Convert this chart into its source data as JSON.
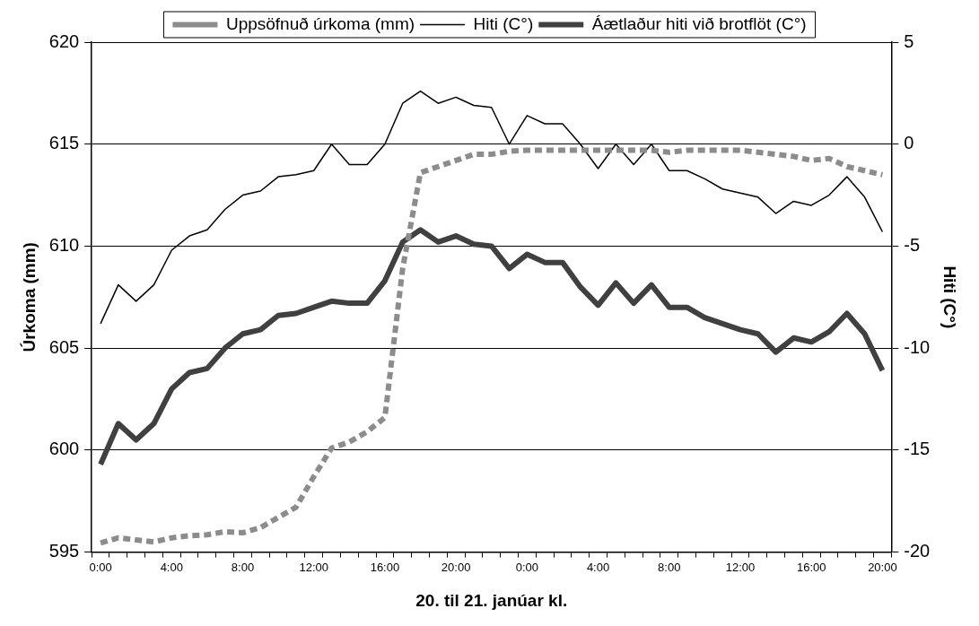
{
  "chart_data": {
    "type": "line",
    "xlabel": "20. til 21. janúar kl.",
    "ylabel": "Úrkoma (mm)",
    "y2label": "Hiti (C°)",
    "categories": [
      "0:00",
      null,
      null,
      null,
      "4:00",
      null,
      null,
      null,
      "8:00",
      null,
      null,
      null,
      "12:00",
      null,
      null,
      null,
      "16:00",
      null,
      null,
      null,
      "20:00",
      null,
      null,
      null,
      "0:00",
      null,
      null,
      null,
      "4:00",
      null,
      null,
      null,
      "8:00",
      null,
      null,
      null,
      "12:00",
      null,
      null,
      null,
      "16:00",
      null,
      null,
      null,
      "20:00"
    ],
    "series": [
      {
        "name": "Uppsöfnuð úrkoma (mm)",
        "color": "#8c8c8c",
        "line_style": "dashed",
        "values": [
          595.45,
          595.7,
          595.6,
          595.5,
          595.7,
          595.8,
          595.85,
          596.0,
          595.95,
          596.2,
          596.7,
          597.2,
          598.7,
          600.1,
          600.4,
          600.9,
          601.6,
          608.9,
          613.6,
          613.9,
          614.2,
          614.5,
          614.5,
          614.65,
          614.7,
          614.7,
          614.7,
          614.7,
          614.7,
          614.7,
          614.7,
          614.7,
          614.6,
          614.7,
          614.7,
          614.7,
          614.7,
          614.6,
          614.5,
          614.4,
          614.2,
          614.3,
          613.9,
          613.7,
          613.5
        ]
      },
      {
        "name": "Hiti (C°)",
        "color": "#000000",
        "axis": "y2",
        "line_style": "solid",
        "values": [
          -8.8,
          -6.9,
          -7.7,
          -6.9,
          -5.2,
          -4.5,
          -4.2,
          -3.2,
          -2.5,
          -2.3,
          -1.6,
          -1.5,
          -1.3,
          0,
          -1.0,
          -1.0,
          0,
          2.0,
          2.6,
          2.0,
          2.3,
          1.9,
          1.8,
          0.0,
          1.4,
          1.0,
          1.0,
          0.0,
          -1.2,
          0,
          -1.0,
          0,
          -1.3,
          -1.3,
          -1.7,
          -2.2,
          -2.4,
          -2.6,
          -3.4,
          -2.8,
          -3.0,
          -2.5,
          -1.6,
          -2.6,
          -4.3
        ]
      },
      {
        "name": "Áætlaður hiti við brotflöt (C°)",
        "color": "#404040",
        "axis": "y2",
        "line_style": "solid",
        "values": [
          -15.7,
          -13.7,
          -14.5,
          -13.7,
          -12.0,
          -11.2,
          -11.0,
          -10.0,
          -9.3,
          -9.1,
          -8.4,
          -8.3,
          -8.0,
          -7.7,
          -7.8,
          -7.8,
          -6.7,
          -4.8,
          -4.2,
          -4.8,
          -4.5,
          -4.9,
          -5.0,
          -6.1,
          -5.4,
          -5.8,
          -5.8,
          -7.0,
          -7.9,
          -6.8,
          -7.8,
          -6.9,
          -8.0,
          -8.0,
          -8.5,
          -8.8,
          -9.1,
          -9.3,
          -10.2,
          -9.5,
          -9.7,
          -9.2,
          -8.3,
          -9.3,
          -11.1
        ]
      }
    ],
    "ylim": [
      595,
      620
    ],
    "yticks": [
      595,
      600,
      605,
      610,
      615,
      620
    ],
    "y2lim": [
      -20,
      5
    ],
    "y2ticks": [
      -20,
      -15,
      -10,
      -5,
      0,
      5
    ],
    "grid": "y",
    "legend": "top",
    "marker": "none"
  }
}
